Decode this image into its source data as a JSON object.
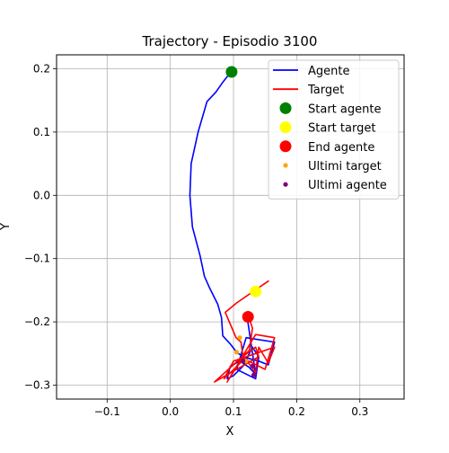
{
  "chart_data": {
    "type": "line",
    "title": "Trajectory - Episodio 3100",
    "xlabel": "X",
    "ylabel": "Y",
    "xlim": [
      -0.18,
      0.37
    ],
    "ylim": [
      -0.322,
      0.222
    ],
    "xticks": [
      -0.1,
      0.0,
      0.1,
      0.2,
      0.3
    ],
    "xtick_labels": [
      "−0.1",
      "0.0",
      "0.1",
      "0.2",
      "0.3"
    ],
    "yticks": [
      -0.3,
      -0.2,
      -0.1,
      0.0,
      0.1,
      0.2
    ],
    "ytick_labels": [
      "−0.3",
      "−0.2",
      "−0.1",
      "0.0",
      "0.1",
      "0.2"
    ],
    "grid": true,
    "legend_position": "top-right",
    "series": [
      {
        "name": "Agente",
        "kind": "line",
        "color": "#0000ff",
        "x": [
          0.096,
          0.084,
          0.072,
          0.058,
          0.044,
          0.033,
          0.031,
          0.035,
          0.047,
          0.054,
          0.062,
          0.075,
          0.081,
          0.083,
          0.095,
          0.105,
          0.115,
          0.125,
          0.14,
          0.155,
          0.165,
          0.12,
          0.105,
          0.135,
          0.14,
          0.13,
          0.115,
          0.1,
          0.09,
          0.095,
          0.11,
          0.125,
          0.135,
          0.122
        ],
        "y": [
          0.195,
          0.18,
          0.163,
          0.148,
          0.1,
          0.05,
          0.0,
          -0.05,
          -0.095,
          -0.128,
          -0.146,
          -0.172,
          -0.193,
          -0.222,
          -0.235,
          -0.248,
          -0.255,
          -0.258,
          -0.262,
          -0.268,
          -0.232,
          -0.225,
          -0.275,
          -0.29,
          -0.255,
          -0.24,
          -0.27,
          -0.285,
          -0.29,
          -0.27,
          -0.262,
          -0.272,
          -0.283,
          -0.195
        ]
      },
      {
        "name": "Target",
        "kind": "line",
        "color": "#ff0000",
        "x": [
          0.156,
          0.105,
          0.087,
          0.104,
          0.112,
          0.115,
          0.09,
          0.135,
          0.165,
          0.15,
          0.12,
          0.135,
          0.14,
          0.155,
          0.165,
          0.135,
          0.1,
          0.085,
          0.118,
          0.105,
          0.135,
          0.14,
          0.105,
          0.07,
          0.125,
          0.13,
          0.125
        ],
        "y": [
          -0.135,
          -0.17,
          -0.185,
          -0.225,
          -0.232,
          -0.255,
          -0.295,
          -0.22,
          -0.225,
          -0.275,
          -0.26,
          -0.28,
          -0.24,
          -0.265,
          -0.24,
          -0.25,
          -0.262,
          -0.29,
          -0.258,
          -0.262,
          -0.24,
          -0.255,
          -0.275,
          -0.295,
          -0.245,
          -0.21,
          -0.195
        ]
      },
      {
        "name": "Start agente",
        "kind": "marker",
        "color": "#008000",
        "x": [
          0.097
        ],
        "y": [
          0.195
        ]
      },
      {
        "name": "Start target",
        "kind": "marker",
        "color": "#ffff00",
        "x": [
          0.135
        ],
        "y": [
          -0.152
        ]
      },
      {
        "name": "End agente",
        "kind": "marker",
        "color": "#ff0000",
        "x": [
          0.123
        ],
        "y": [
          -0.192
        ]
      },
      {
        "name": "Ultimi target",
        "kind": "small-marker",
        "color": "#ffa500",
        "x": [
          0.11,
          0.105,
          0.12
        ],
        "y": [
          -0.225,
          -0.248,
          -0.262
        ]
      },
      {
        "name": "Ultimi agente",
        "kind": "small-marker",
        "color": "#800080",
        "x": [
          0.132,
          0.115,
          0.13
        ],
        "y": [
          -0.284,
          -0.262,
          -0.27
        ]
      }
    ]
  }
}
